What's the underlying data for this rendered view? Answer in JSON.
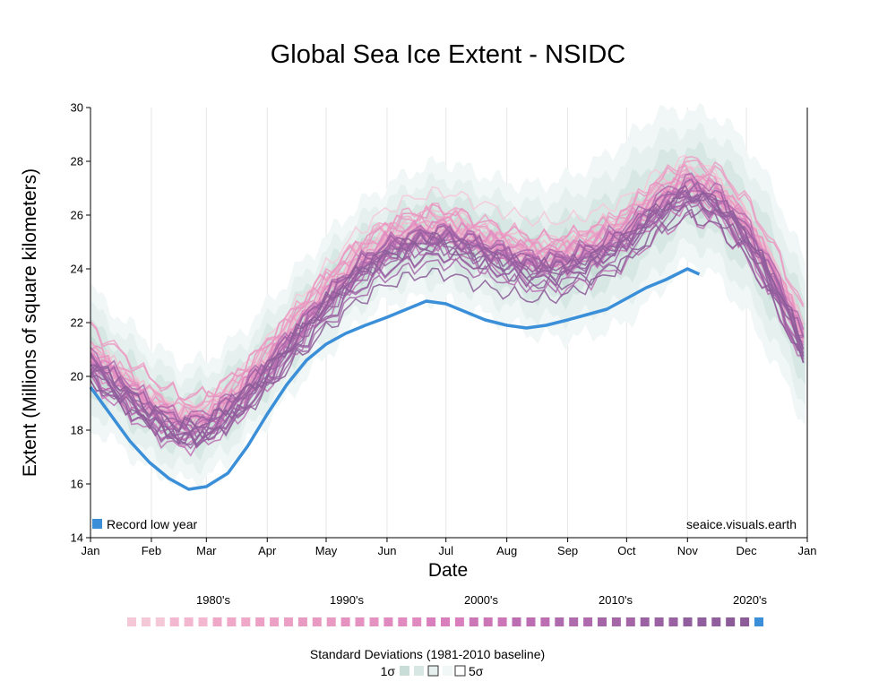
{
  "chart_data": {
    "type": "line",
    "title": "Global Sea Ice Extent - NSIDC",
    "xlabel": "Date",
    "ylabel": "Extent (Millions of square kilometers)",
    "ylim": [
      14,
      30
    ],
    "yticks": [
      "14",
      "16",
      "18",
      "20",
      "22",
      "24",
      "26",
      "28",
      "30"
    ],
    "ytick_values": [
      14,
      16,
      18,
      20,
      22,
      24,
      26,
      28,
      30
    ],
    "months": [
      "Jan",
      "Feb",
      "Mar",
      "Apr",
      "May",
      "Jun",
      "Jul",
      "Aug",
      "Sep",
      "Oct",
      "Nov",
      "Dec",
      "Jan"
    ],
    "month_days": [
      0,
      31,
      59,
      90,
      120,
      151,
      181,
      212,
      243,
      273,
      304,
      334,
      365
    ],
    "grid": "vertical",
    "record_label": "Record low year",
    "source_label": "seaice.visuals.earth",
    "record_color": "#3a8fd8",
    "climatology": {
      "day": [
        0,
        15,
        30,
        45,
        59,
        75,
        90,
        105,
        120,
        135,
        151,
        166,
        181,
        196,
        212,
        227,
        243,
        258,
        273,
        288,
        304,
        319,
        334,
        349,
        364
      ],
      "mean": [
        20.7,
        19.8,
        18.9,
        18.3,
        18.4,
        19.3,
        20.5,
        21.8,
        23.0,
        24.1,
        24.9,
        25.3,
        25.4,
        25.0,
        24.6,
        24.3,
        24.4,
        24.8,
        25.4,
        26.4,
        27.1,
        26.7,
        25.5,
        23.6,
        21.2
      ],
      "sd1": [
        0.65,
        0.6,
        0.6,
        0.55,
        0.55,
        0.55,
        0.55,
        0.55,
        0.55,
        0.55,
        0.55,
        0.6,
        0.65,
        0.65,
        0.65,
        0.7,
        0.75,
        0.8,
        0.85,
        0.85,
        0.7,
        0.75,
        0.8,
        0.8,
        0.75
      ]
    },
    "record_low": {
      "day": [
        0,
        10,
        20,
        30,
        40,
        50,
        59,
        70,
        80,
        90,
        100,
        110,
        120,
        130,
        140,
        151,
        161,
        171,
        181,
        191,
        201,
        212,
        222,
        232,
        243,
        253,
        263,
        273,
        283,
        293,
        304,
        310
      ],
      "value": [
        19.6,
        18.6,
        17.6,
        16.8,
        16.2,
        15.8,
        15.9,
        16.4,
        17.4,
        18.6,
        19.7,
        20.6,
        21.2,
        21.6,
        21.9,
        22.2,
        22.5,
        22.8,
        22.7,
        22.4,
        22.1,
        21.9,
        21.8,
        21.9,
        22.1,
        22.3,
        22.5,
        22.9,
        23.3,
        23.6,
        24.0,
        23.8
      ]
    },
    "year_series_note": "One line per year, 1979-2023; colours run from pink (1980's) to purple (2020's); the record low year is highlighted in blue."
  },
  "legend": {
    "decades": [
      "1980's",
      "1990's",
      "2000's",
      "2010's",
      "2020's"
    ],
    "swatch_colors": [
      "#f5c8d8",
      "#f3b8cf",
      "#f0a8c8",
      "#eda0c5",
      "#e99ac2",
      "#e692c0",
      "#e18ac0",
      "#d97fbd",
      "#cc76b8",
      "#bd6eb3",
      "#b06aae",
      "#a566a8",
      "#9a62a2",
      "#915f9d",
      "#8b5c98",
      "#3a8fd8"
    ],
    "std_title": "Standard Deviations (1981-2010 baseline)",
    "std_low": "1σ",
    "std_high": "5σ",
    "std_colors": [
      "#c8ddd8",
      "#d7e8e4",
      "#e6f1ef",
      "#f1f7f6"
    ]
  }
}
